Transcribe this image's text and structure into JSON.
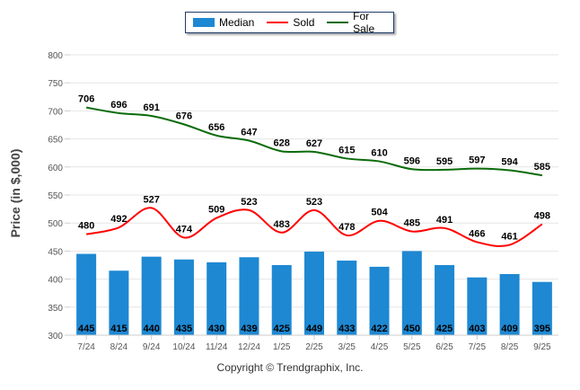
{
  "chart_data": {
    "type": "bar",
    "title": "",
    "xlabel": "",
    "ylabel": "Price (in $,000)",
    "ylim": [
      300,
      800
    ],
    "yticks": [
      300,
      350,
      400,
      450,
      500,
      550,
      600,
      650,
      700,
      750,
      800
    ],
    "grid": true,
    "legend_position": "top-center",
    "categories": [
      "7/24",
      "8/24",
      "9/24",
      "10/24",
      "11/24",
      "12/24",
      "1/25",
      "2/25",
      "3/25",
      "4/25",
      "5/25",
      "6/25",
      "7/25",
      "8/25",
      "9/25"
    ],
    "series": [
      {
        "name": "Median",
        "type": "bar",
        "color": "#1e88d2",
        "values": [
          445,
          415,
          440,
          435,
          430,
          439,
          425,
          449,
          433,
          422,
          450,
          425,
          403,
          409,
          395
        ]
      },
      {
        "name": "Sold",
        "type": "line",
        "color": "#ff0000",
        "values": [
          480,
          492,
          527,
          474,
          509,
          523,
          483,
          523,
          478,
          504,
          485,
          491,
          466,
          461,
          498
        ]
      },
      {
        "name": "For Sale",
        "type": "line",
        "color": "#0a6b0a",
        "values": [
          706,
          696,
          691,
          676,
          656,
          647,
          628,
          627,
          615,
          610,
          596,
          595,
          597,
          594,
          585
        ]
      }
    ]
  },
  "legend": {
    "items": [
      {
        "label": "Median",
        "color": "#1e88d2",
        "kind": "bar"
      },
      {
        "label": "Sold",
        "color": "#ff0000",
        "kind": "line"
      },
      {
        "label": "For Sale",
        "color": "#0a6b0a",
        "kind": "line"
      }
    ]
  },
  "footer": {
    "copyright": "Copyright © Trendgraphix, Inc."
  }
}
